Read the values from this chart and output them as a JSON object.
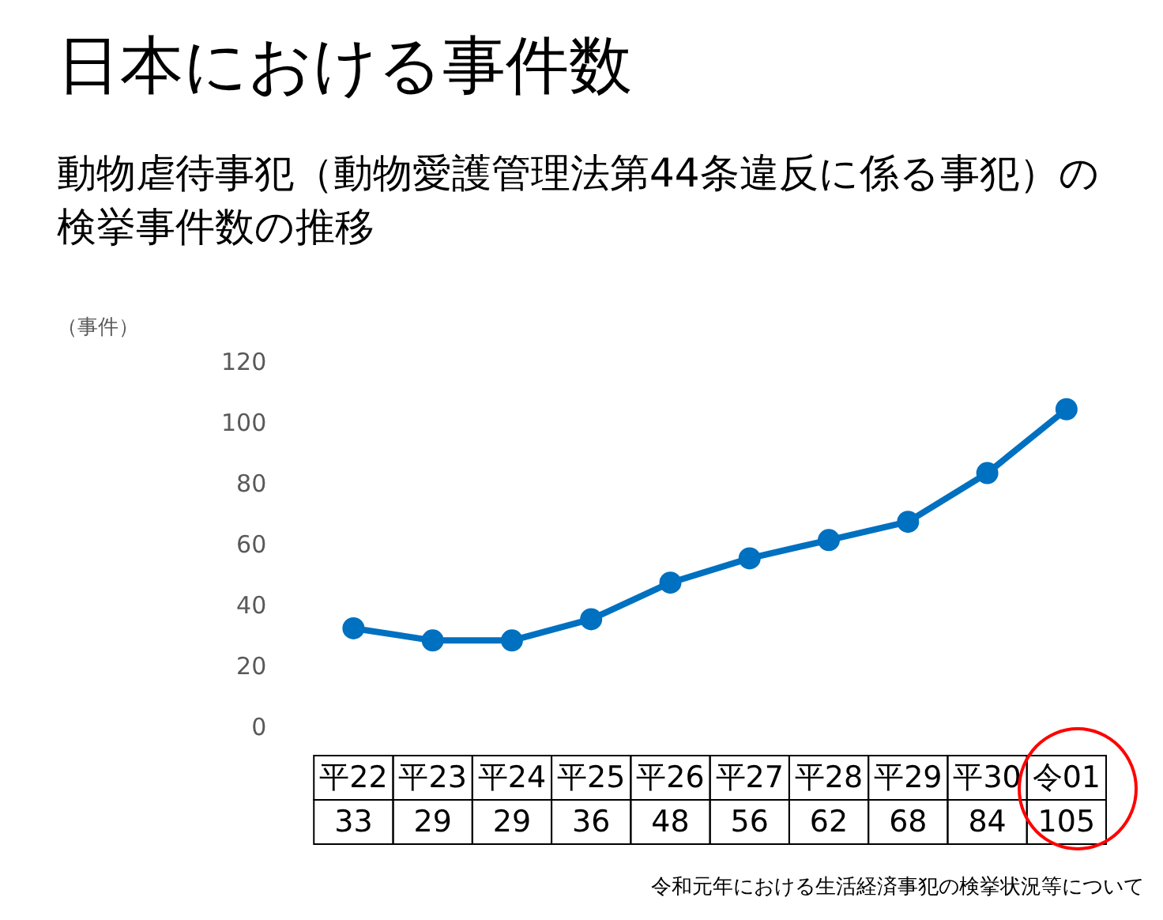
{
  "chart_data": {
    "type": "line",
    "title": "日本における事件数",
    "subtitle": "動物虐待事犯（動物愛護管理法第44条違反に係る事犯）の検挙事件数の推移",
    "ylabel": "（事件）",
    "categories": [
      "平22",
      "平23",
      "平24",
      "平25",
      "平26",
      "平27",
      "平28",
      "平29",
      "平30",
      "令01"
    ],
    "series": [
      {
        "color": "#0070c0",
        "values": [
          33,
          29,
          29,
          36,
          48,
          56,
          62,
          68,
          84,
          105
        ]
      }
    ],
    "ylim": [
      0,
      120
    ],
    "yticks": [
      0,
      20,
      40,
      60,
      80,
      100,
      120
    ],
    "grid": false,
    "legend": false,
    "marker": "circle",
    "line_style": "solid",
    "data_labels": true,
    "annotations": [
      "令和元年における生活経済事犯の検挙状況等について"
    ]
  }
}
